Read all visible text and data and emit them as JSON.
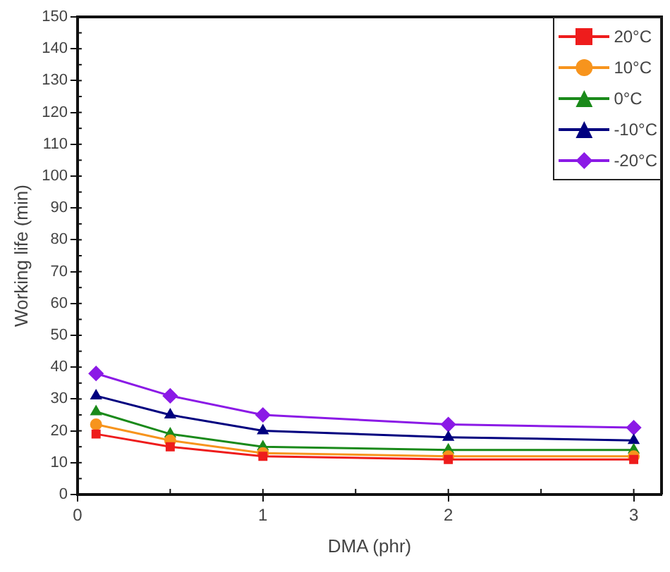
{
  "chart_data": {
    "type": "line",
    "xlabel": "DMA (phr)",
    "ylabel": "Working life (min)",
    "x": [
      0.1,
      0.5,
      1,
      2,
      3
    ],
    "series": [
      {
        "name": "20°C",
        "color": "#ee1c1c",
        "marker": "square",
        "values": [
          19,
          15,
          12,
          11,
          11
        ]
      },
      {
        "name": "10°C",
        "color": "#f7941d",
        "marker": "circle",
        "values": [
          22,
          17,
          13,
          12,
          12
        ]
      },
      {
        "name": "0°C",
        "color": "#1a8a1a",
        "marker": "triangle",
        "values": [
          26,
          19,
          15,
          14,
          14
        ]
      },
      {
        "name": "-10°C",
        "color": "#00007f",
        "marker": "triangle",
        "values": [
          31,
          25,
          20,
          18,
          17
        ]
      },
      {
        "name": "-20°C",
        "color": "#8b1ae6",
        "marker": "diamond",
        "values": [
          38,
          31,
          25,
          22,
          21
        ]
      }
    ],
    "xlim": [
      0,
      3.15
    ],
    "xticks": [
      0,
      1,
      2,
      3
    ],
    "ylim": [
      0,
      150
    ],
    "yticks": [
      0,
      10,
      20,
      30,
      40,
      50,
      60,
      70,
      80,
      90,
      100,
      110,
      120,
      130,
      140,
      150
    ],
    "grid": false,
    "legend": "top right",
    "line_style": "solid"
  }
}
